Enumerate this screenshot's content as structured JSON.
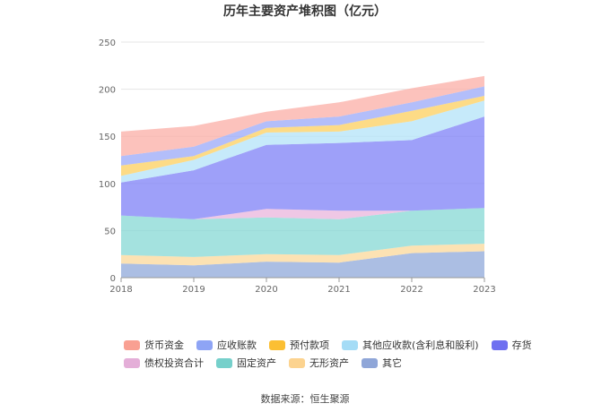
{
  "chart_data": {
    "type": "area",
    "stacked": true,
    "title": "历年主要资产堆积图（亿元）",
    "categories": [
      "2018",
      "2019",
      "2020",
      "2021",
      "2022",
      "2023"
    ],
    "ylim": [
      0,
      250
    ],
    "yticks": [
      0,
      50,
      100,
      150,
      200,
      250
    ],
    "grid": true,
    "legend_position": "bottom",
    "series": [
      {
        "name": "其它",
        "color": "#8fa8d9",
        "values": [
          15,
          13,
          17,
          16,
          26,
          28
        ]
      },
      {
        "name": "无形资产",
        "color": "#fbd89a",
        "values": [
          9,
          9,
          8,
          8,
          8,
          8
        ]
      },
      {
        "name": "固定资产",
        "color": "#86d8d4",
        "values": [
          42,
          40,
          39,
          38,
          37,
          38
        ]
      },
      {
        "name": "债权投资合计",
        "color": "#e9b4dc",
        "values": [
          0,
          0,
          9,
          9,
          0,
          0
        ]
      },
      {
        "name": "存货",
        "color": "#7e80f7",
        "values": [
          35,
          52,
          68,
          72,
          75,
          97
        ]
      },
      {
        "name": "其他应收款(含利息和股利)",
        "color": "#b3e3f8",
        "values": [
          7,
          11,
          13,
          12,
          20,
          17
        ]
      },
      {
        "name": "预付款项",
        "color": "#fccf5e",
        "values": [
          11,
          4,
          5,
          7,
          11,
          5
        ]
      },
      {
        "name": "应收账款",
        "color": "#9aa8f8",
        "values": [
          10,
          10,
          7,
          9,
          9,
          10
        ]
      },
      {
        "name": "货币资金",
        "color": "#fbaea6",
        "values": [
          26,
          22,
          10,
          15,
          15,
          11
        ]
      }
    ],
    "legend_rows": [
      [
        {
          "name": "货币资金",
          "color": "#f9a092"
        },
        {
          "name": "应收账款",
          "color": "#8ea4f5"
        },
        {
          "name": "预付款项",
          "color": "#fbbf33"
        },
        {
          "name": "其他应收款(含利息和股利)",
          "color": "#a5dcf6"
        },
        {
          "name": "存货",
          "color": "#6f70f0"
        }
      ],
      [
        {
          "name": "债权投资合计",
          "color": "#e4aed8"
        },
        {
          "name": "固定资产",
          "color": "#76d0cb"
        },
        {
          "name": "无形资产",
          "color": "#fcd38f"
        },
        {
          "name": "其它",
          "color": "#8fa6d8"
        }
      ]
    ]
  },
  "source": "数据来源：恒生聚源"
}
